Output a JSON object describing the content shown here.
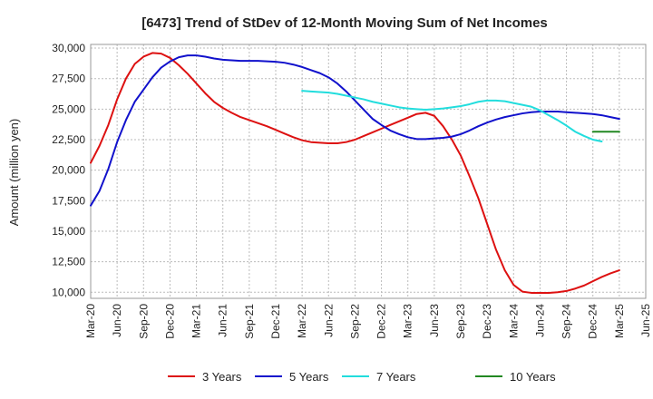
{
  "chart_data": {
    "type": "line",
    "title": "[6473]  Trend of StDev of 12-Month Moving Sum of Net Incomes",
    "ylabel": "Amount (million yen)",
    "xlabel": "",
    "ylim": [
      9500,
      30300
    ],
    "y_ticks": [
      10000,
      12500,
      15000,
      17500,
      20000,
      22500,
      25000,
      27500,
      30000
    ],
    "y_tick_labels": [
      "10,000",
      "12,500",
      "15,000",
      "17,500",
      "20,000",
      "22,500",
      "25,000",
      "27,500",
      "30,000"
    ],
    "x_tick_labels": [
      "Mar-20",
      "Jun-20",
      "Sep-20",
      "Dec-20",
      "Mar-21",
      "Jun-21",
      "Sep-21",
      "Dec-21",
      "Mar-22",
      "Jun-22",
      "Sep-22",
      "Dec-22",
      "Mar-23",
      "Jun-23",
      "Sep-23",
      "Dec-23",
      "Mar-24",
      "Jun-24",
      "Sep-24",
      "Dec-24",
      "Mar-25",
      "Jun-25"
    ],
    "x_start": "2020-03",
    "grid": true,
    "legend_position": "bottom",
    "series": [
      {
        "name": "3 Years",
        "color": "#dd1111",
        "start": "2020-03",
        "values": [
          20600,
          22000,
          23700,
          25800,
          27500,
          28700,
          29300,
          29600,
          29550,
          29200,
          28600,
          27900,
          27100,
          26300,
          25600,
          25100,
          24700,
          24350,
          24100,
          23850,
          23600,
          23300,
          23000,
          22700,
          22450,
          22300,
          22250,
          22200,
          22200,
          22300,
          22500,
          22800,
          23100,
          23400,
          23700,
          24000,
          24300,
          24600,
          24700,
          24450,
          23600,
          22500,
          21200,
          19500,
          17700,
          15600,
          13500,
          11800,
          10600,
          10050,
          9950,
          9950,
          9950,
          10000,
          10100,
          10300,
          10550,
          10900,
          11250,
          11550,
          11800
        ]
      },
      {
        "name": "5 Years",
        "color": "#1111cc",
        "start": "2020-03",
        "values": [
          17100,
          18300,
          20100,
          22300,
          24100,
          25600,
          26600,
          27600,
          28400,
          28900,
          29250,
          29400,
          29400,
          29300,
          29150,
          29050,
          29000,
          28950,
          28950,
          28950,
          28920,
          28880,
          28800,
          28650,
          28450,
          28200,
          27950,
          27600,
          27100,
          26450,
          25700,
          24950,
          24200,
          23700,
          23250,
          22950,
          22700,
          22550,
          22550,
          22600,
          22650,
          22750,
          22950,
          23250,
          23600,
          23900,
          24150,
          24350,
          24500,
          24650,
          24750,
          24800,
          24800,
          24800,
          24750,
          24700,
          24650,
          24600,
          24500,
          24350,
          24200
        ]
      },
      {
        "name": "7 Years",
        "color": "#22dddd",
        "start": "2022-03",
        "values": [
          26500,
          26450,
          26400,
          26350,
          26250,
          26100,
          25950,
          25800,
          25600,
          25450,
          25300,
          25150,
          25050,
          25000,
          24950,
          25000,
          25050,
          25150,
          25250,
          25400,
          25600,
          25700,
          25700,
          25650,
          25500,
          25350,
          25200,
          24900,
          24500,
          24100,
          23650,
          23150,
          22800,
          22500,
          22350
        ]
      },
      {
        "name": "10 Years",
        "color": "#228822",
        "start": "2024-12",
        "values": [
          23150,
          23150,
          23150,
          23150
        ]
      }
    ]
  }
}
